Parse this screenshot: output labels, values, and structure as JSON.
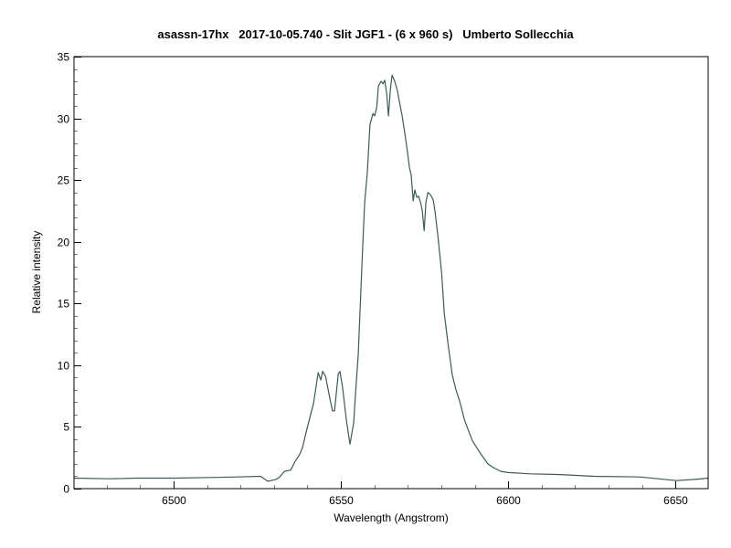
{
  "chart_data": {
    "type": "line",
    "title": "asassn-17hx   2017-10-05.740 - Slit JGF1 - (6 x 960 s)   Umberto Sollecchia",
    "xlabel": "Wavelength (Angstrom)",
    "ylabel": "Relative intensity",
    "xlim": [
      6470.2,
      6659.8
    ],
    "ylim": [
      0,
      35
    ],
    "x_ticks": [
      6500,
      6550,
      6600,
      6650
    ],
    "x_minor_step": 10,
    "y_ticks": [
      0,
      5,
      10,
      15,
      20,
      25,
      30,
      35
    ],
    "y_minor_step": 1,
    "grid": false,
    "legend": null,
    "line_color": "#3d5a5a",
    "series": [
      {
        "name": "spectrum",
        "x": [
          6470.2,
          6480.9,
          6489.1,
          6500.0,
          6510.9,
          6519.1,
          6526.0,
          6528.1,
          6530.6,
          6531.7,
          6533.1,
          6535.0,
          6536.3,
          6537.7,
          6538.5,
          6539.9,
          6541.8,
          6543.2,
          6544.0,
          6544.5,
          6545.4,
          6546.7,
          6547.5,
          6548.1,
          6549.2,
          6549.7,
          6550.5,
          6551.6,
          6552.7,
          6553.8,
          6554.6,
          6555.2,
          6555.7,
          6556.6,
          6557.1,
          6557.9,
          6558.7,
          6559.6,
          6560.1,
          6560.7,
          6561.2,
          6562.0,
          6562.6,
          6563.1,
          6563.7,
          6564.2,
          6564.8,
          6565.3,
          6566.1,
          6566.9,
          6567.5,
          6568.3,
          6569.1,
          6569.9,
          6570.5,
          6571.0,
          6571.6,
          6572.1,
          6572.7,
          6573.2,
          6573.8,
          6574.3,
          6574.9,
          6575.4,
          6576.0,
          6576.8,
          6577.6,
          6578.1,
          6579.0,
          6580.1,
          6580.9,
          6582.0,
          6583.3,
          6584.4,
          6585.5,
          6586.9,
          6588.0,
          6589.3,
          6590.4,
          6592.1,
          6594.0,
          6595.6,
          6597.8,
          6600.0,
          6606.6,
          6614.8,
          6625.7,
          6639.3,
          6650.3,
          6655.7,
          6659.8
        ],
        "y": [
          0.85,
          0.8,
          0.85,
          0.85,
          0.9,
          0.95,
          1.0,
          0.6,
          0.75,
          0.95,
          1.4,
          1.5,
          2.2,
          2.8,
          3.3,
          4.9,
          6.9,
          9.4,
          8.8,
          9.5,
          9.1,
          7.3,
          6.3,
          6.3,
          9.3,
          9.5,
          8.2,
          5.6,
          3.6,
          5.3,
          8.6,
          10.9,
          14.4,
          20.2,
          23.2,
          25.6,
          29.5,
          30.4,
          30.2,
          30.9,
          32.6,
          33.0,
          32.8,
          33.1,
          32.0,
          30.2,
          32.4,
          33.5,
          33.0,
          32.2,
          31.3,
          30.2,
          28.8,
          27.3,
          26.0,
          25.4,
          23.3,
          24.2,
          23.6,
          23.7,
          23.2,
          22.6,
          20.9,
          23.2,
          24.0,
          23.8,
          23.4,
          22.5,
          20.5,
          17.5,
          14.2,
          11.8,
          9.2,
          8.0,
          7.1,
          5.6,
          4.8,
          3.9,
          3.4,
          2.7,
          2.0,
          1.7,
          1.4,
          1.3,
          1.2,
          1.15,
          1.0,
          0.95,
          0.65,
          0.75,
          0.85
        ]
      }
    ]
  }
}
